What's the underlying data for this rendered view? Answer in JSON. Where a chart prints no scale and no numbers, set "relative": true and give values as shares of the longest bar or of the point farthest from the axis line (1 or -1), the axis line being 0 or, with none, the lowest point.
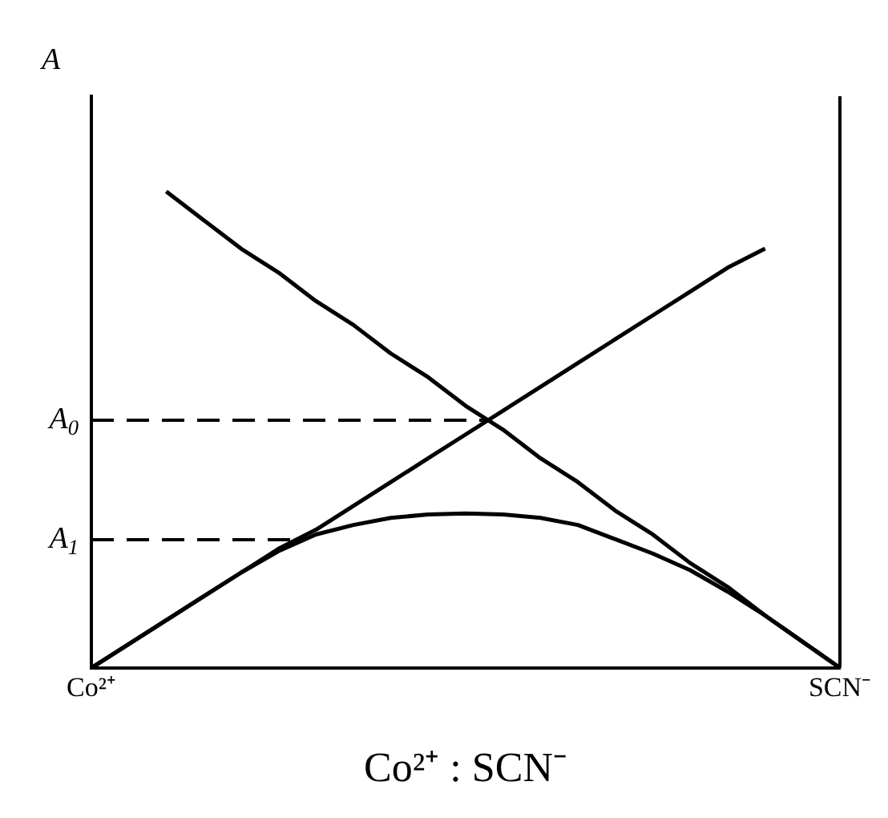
{
  "chart_data": {
    "type": "line",
    "relative": true,
    "ylabel": "A",
    "xlabel": "Co²⁺ : SCN⁻",
    "categories": [
      "Co²⁺",
      null,
      null,
      null,
      null,
      null,
      null,
      null,
      null,
      null,
      null,
      null,
      null,
      null,
      null,
      null,
      null,
      null,
      null,
      null,
      "SCN⁻"
    ],
    "series": [
      {
        "color": "#000000",
        "values": [
          0,
          0.05,
          0.1,
          0.15,
          0.2,
          0.25,
          0.29,
          0.34,
          0.39,
          0.44,
          0.49,
          0.54,
          0.59,
          0.64,
          0.69,
          0.74,
          0.79,
          0.84,
          0.88,
          null,
          null
        ]
      },
      {
        "color": "#000000",
        "values": [
          null,
          null,
          1,
          0.94,
          0.88,
          0.83,
          0.77,
          0.72,
          0.66,
          0.61,
          0.55,
          0.5,
          0.44,
          0.39,
          0.33,
          0.28,
          0.22,
          0.17,
          0.11,
          0.055,
          0
        ]
      },
      {
        "color": "#000000",
        "values": [
          0,
          0.05,
          0.1,
          0.15,
          0.2,
          0.245,
          0.28,
          0.3,
          0.315,
          0.322,
          0.324,
          0.322,
          0.315,
          0.3,
          0.27,
          0.24,
          0.205,
          0.16,
          0.11,
          0.055,
          0
        ]
      }
    ],
    "ref_lines": [
      {
        "axis": "y",
        "value": 0.52,
        "label": "A$_{0}$",
        "line_style": "dashed"
      },
      {
        "axis": "y",
        "value": 0.269,
        "label": "A$_{1}$",
        "line_style": "dashed"
      }
    ],
    "legend": false,
    "marker": "none",
    "line_style": "solid"
  }
}
